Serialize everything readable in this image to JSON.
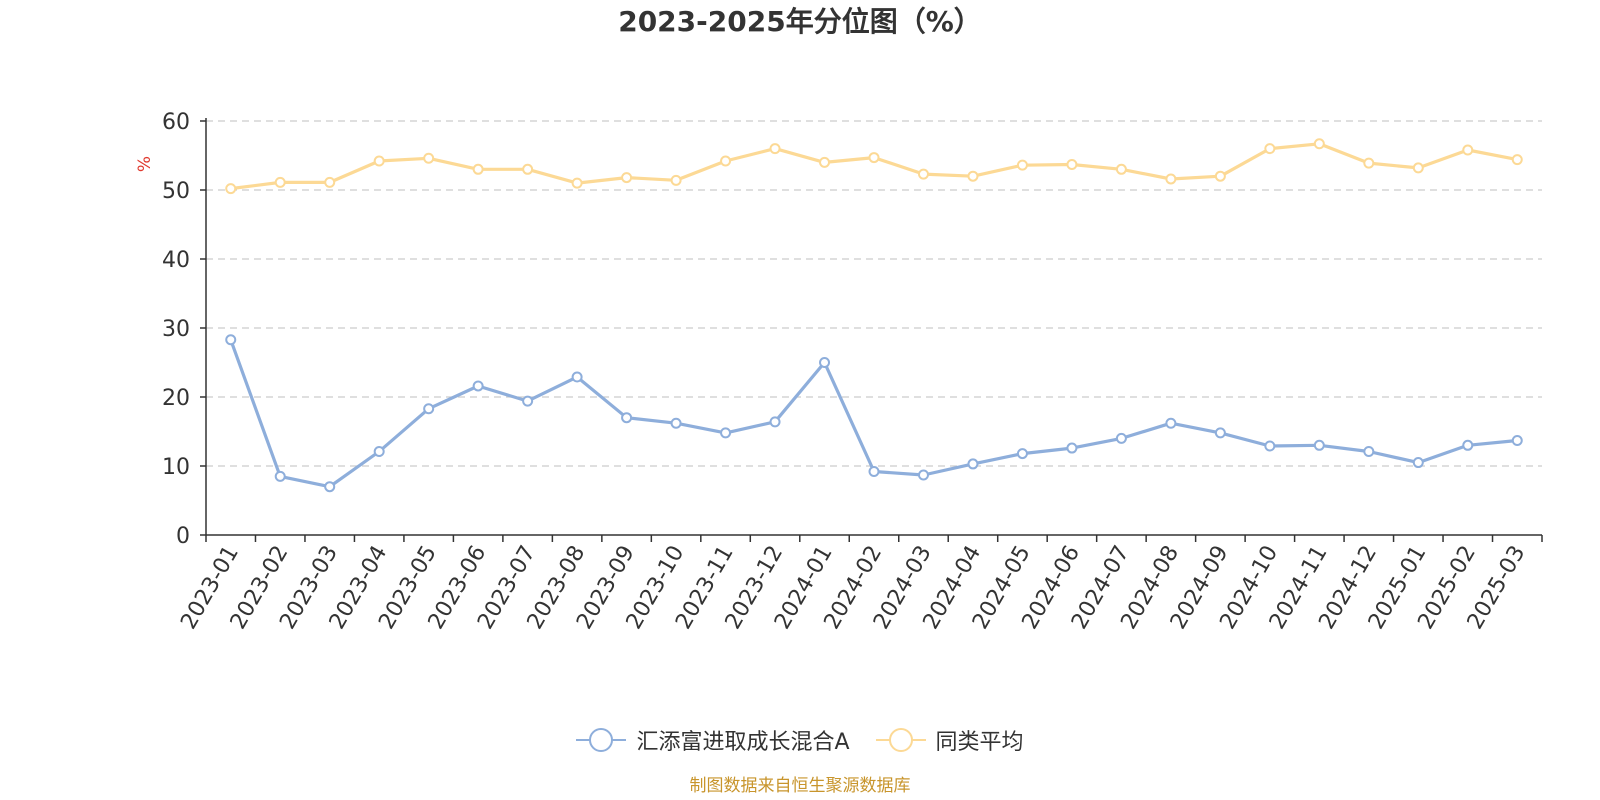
{
  "chart_data": {
    "type": "line",
    "title": "2023-2025年分位图（%）",
    "ylabel": "%",
    "xlabel": "",
    "ylim": [
      0,
      60
    ],
    "yticks": [
      0,
      10,
      20,
      30,
      40,
      50,
      60
    ],
    "grid": true,
    "legend_position": "bottom",
    "categories": [
      "2023-01",
      "2023-02",
      "2023-03",
      "2023-04",
      "2023-05",
      "2023-06",
      "2023-07",
      "2023-08",
      "2023-09",
      "2023-10",
      "2023-11",
      "2023-12",
      "2024-01",
      "2024-02",
      "2024-03",
      "2024-04",
      "2024-05",
      "2024-06",
      "2024-07",
      "2024-08",
      "2024-09",
      "2024-10",
      "2024-11",
      "2024-12",
      "2025-01",
      "2025-02",
      "2025-03"
    ],
    "series": [
      {
        "name": "汇添富进取成长混合A",
        "color": "#8eaedb",
        "values": [
          28.3,
          8.5,
          7.0,
          12.1,
          18.3,
          21.6,
          19.4,
          22.9,
          17.0,
          16.2,
          14.8,
          16.4,
          25.0,
          9.2,
          8.7,
          10.3,
          11.8,
          12.6,
          14.0,
          16.2,
          14.8,
          12.9,
          13.0,
          12.1,
          10.5,
          13.0,
          13.7
        ]
      },
      {
        "name": "同类平均",
        "color": "#fcd995",
        "values": [
          50.2,
          51.1,
          51.1,
          54.2,
          54.6,
          53.0,
          53.0,
          51.0,
          51.8,
          51.4,
          54.2,
          56.0,
          54.0,
          54.7,
          52.3,
          52.0,
          53.6,
          53.7,
          53.0,
          51.6,
          52.0,
          56.0,
          56.7,
          53.9,
          53.2,
          55.8,
          54.4
        ]
      }
    ]
  },
  "source_text": "制图数据来自恒生聚源数据库"
}
